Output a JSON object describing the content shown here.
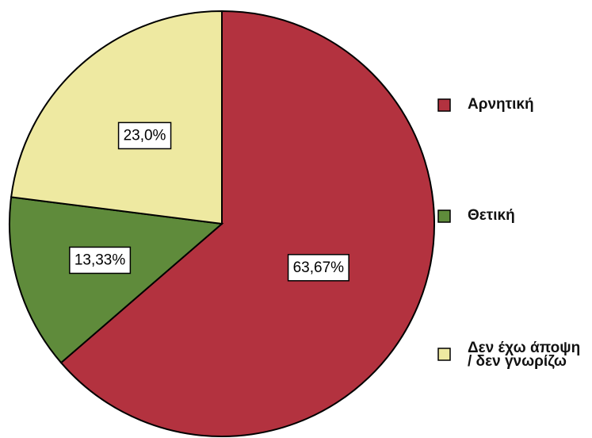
{
  "chart_data": {
    "type": "pie",
    "categories": [
      "Αρνητική",
      "Θετική",
      "Δεν έχω άποψη / δεν γνωρίζω"
    ],
    "values": [
      63.67,
      13.33,
      23.0
    ],
    "value_labels": [
      "63,67%",
      "13,33%",
      "23,0%"
    ],
    "colors": [
      "#b3323f",
      "#5f8b3b",
      "#eee9a1"
    ],
    "legend": "right"
  }
}
